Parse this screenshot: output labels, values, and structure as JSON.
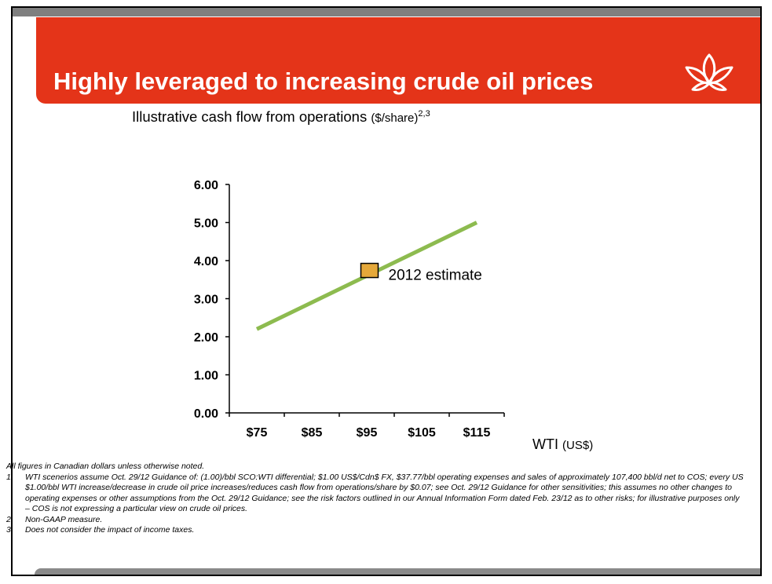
{
  "slide": {
    "title": "Highly leveraged to increasing crude oil prices"
  },
  "chart_heading": {
    "main": "Illustrative cash flow from operations",
    "unit": "($/share)",
    "refs": "2,3"
  },
  "colors": {
    "title_bar": "#e43419",
    "line": "#8dbb4f",
    "marker": "#e5a83a"
  },
  "icons": [
    "flower-logo-icon"
  ],
  "chart_data": {
    "type": "line",
    "x_categories": [
      "$75",
      "$85",
      "$95",
      "$105",
      "$115"
    ],
    "xlabel": "WTI",
    "xlabel_unit": "(US$)",
    "ylabel": "",
    "ylim": [
      0,
      6
    ],
    "yticks": [
      "0.00",
      "1.00",
      "2.00",
      "3.00",
      "4.00",
      "5.00",
      "6.00"
    ],
    "series": [
      {
        "x": [
          75,
          115
        ],
        "y": [
          2.2,
          5.0
        ]
      }
    ],
    "annotations": [
      {
        "label": "2012 estimate",
        "x": 95.5,
        "y": 3.7
      }
    ],
    "grid": false,
    "legend": "none"
  },
  "footnotes": {
    "intro": "All figures in Canadian dollars unless otherwise noted.",
    "items": [
      {
        "num": "1.",
        "text": "WTI scenerios assume Oct. 29/12 Guidance of: (1.00)/bbl SCO:WTI differential; $1.00 US$/Cdn$ FX, $37.77/bbl operating expenses and sales of approximately 107,400 bbl/d net to COS; every US $1.00/bbl WTI increase/decrease in crude oil price increases/reduces cash flow from operations/share by $0.07; see Oct. 29/12 Guidance for other sensitivities; this assumes no other changes to operating expenses or other assumptions from the Oct. 29/12 Guidance; see the risk factors outlined in our Annual Information Form dated Feb. 23/12 as to other risks; for illustrative purposes only – COS is not expressing a particular view on crude oil prices."
      },
      {
        "num": "2.",
        "text": "Non-GAAP measure."
      },
      {
        "num": "3.",
        "text": "Does not consider the impact of income taxes."
      }
    ]
  }
}
